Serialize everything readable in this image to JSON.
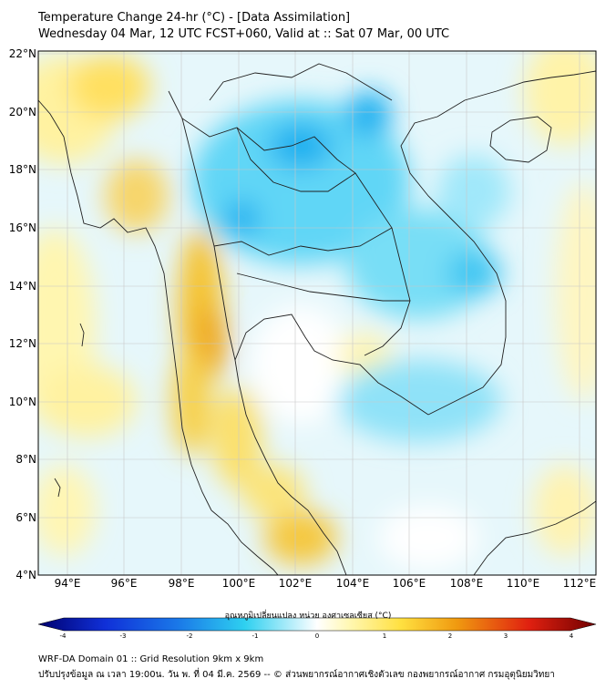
{
  "title": {
    "line1": "Temperature Change 24-hr (°C) - [Data Assimilation]",
    "line2": "Wednesday 04 Mar, 12 UTC FCST+060, Valid at :: Sat 07 Mar, 00 UTC"
  },
  "map": {
    "lat_labels": [
      "22°N",
      "20°N",
      "18°N",
      "16°N",
      "14°N",
      "12°N",
      "10°N",
      "8°N",
      "6°N",
      "4°N"
    ],
    "lon_labels": [
      "94°E",
      "96°E",
      "98°E",
      "100°E",
      "102°E",
      "104°E",
      "106°E",
      "108°E",
      "110°E",
      "112°E"
    ]
  },
  "colorbar": {
    "title": "อุณหภูมิเปลี่ยนแปลง หน่วย องศาเซลเซียส (°C)",
    "ticks": [
      "-4",
      "-3",
      "-2",
      "-1",
      "0",
      "1",
      "2",
      "3",
      "4"
    ],
    "range": [
      -4,
      4
    ]
  },
  "footer": {
    "line1": "WRF-DA Domain 01 :: Grid Resolution 9km x 9km",
    "line2": "ปรับปรุงข้อมูล ณ เวลา 19:00น. วัน พ. ที่ 04 มี.ค. 2569 -- © ส่วนพยากรณ์อากาศเชิงตัวเลข กองพยากรณ์อากาศ กรมอุตุนิยมวิทยา"
  },
  "colors": {
    "cold_strong": "#00a8f0",
    "cold_light": "#9fe8ff",
    "warm_light": "#fff4a0",
    "warm_strong": "#f0b400",
    "neutral": "#ffffff"
  }
}
